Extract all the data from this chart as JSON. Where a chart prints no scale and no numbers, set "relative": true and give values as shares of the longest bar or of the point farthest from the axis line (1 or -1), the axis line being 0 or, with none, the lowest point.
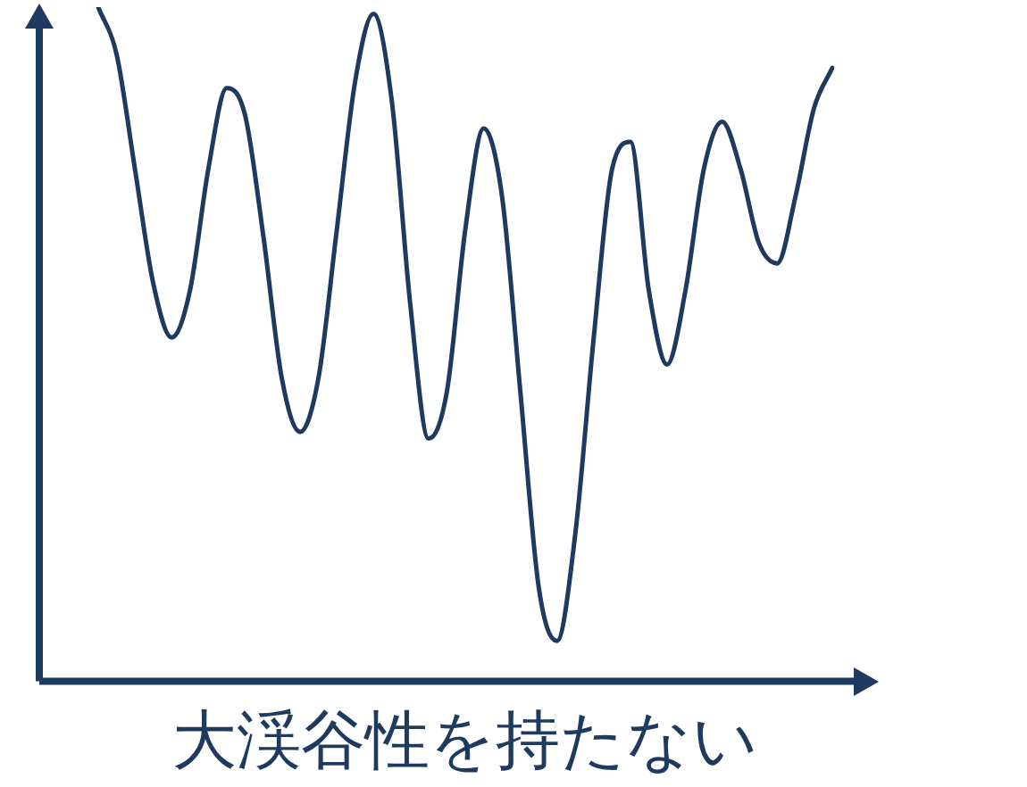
{
  "chart_data": {
    "type": "line",
    "xlabel": "大渓谷性を持たない",
    "relative": true,
    "color": "#1f3a5f",
    "marker": "none",
    "categories": [
      null,
      null,
      null,
      null,
      null,
      null,
      null,
      null,
      null,
      null,
      null,
      null,
      null,
      null,
      null,
      null,
      null,
      null,
      null,
      null,
      null,
      null,
      null,
      null,
      null,
      null,
      null,
      null,
      null,
      null,
      null,
      null,
      null,
      null,
      null,
      null,
      null,
      null,
      null,
      null,
      null
    ],
    "values": [
      1,
      0.93,
      0.76,
      0.59,
      0.51,
      0.58,
      0.76,
      0.88,
      0.84,
      0.66,
      0.45,
      0.37,
      0.45,
      0.67,
      0.89,
      0.99,
      0.86,
      0.56,
      0.36,
      0.43,
      0.67,
      0.82,
      0.72,
      0.43,
      0.14,
      0.06,
      0.22,
      0.51,
      0.76,
      0.8,
      0.58,
      0.47,
      0.58,
      0.76,
      0.83,
      0.76,
      0.65,
      0.62,
      0.72,
      0.85,
      0.91
    ]
  }
}
